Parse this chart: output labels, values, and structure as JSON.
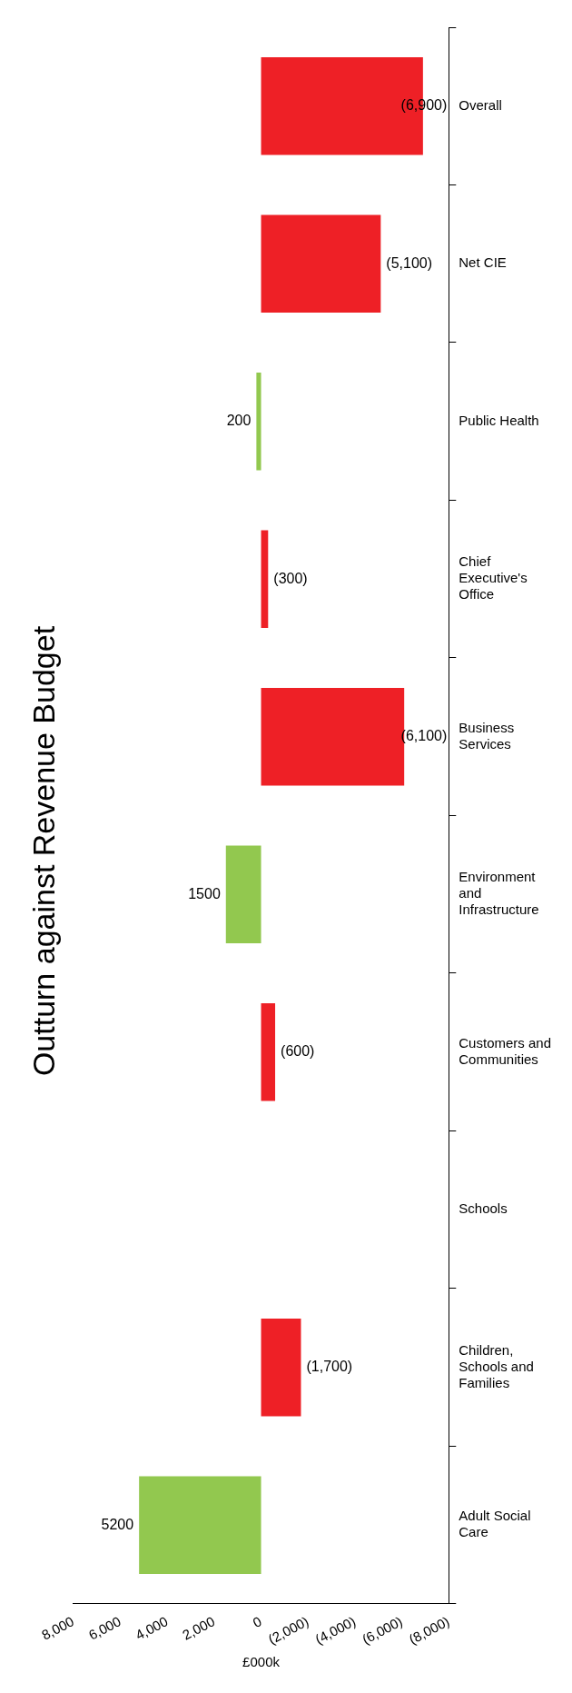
{
  "chart_data": {
    "type": "bar",
    "orientation": "horizontal",
    "title": "Outturn against Revenue Budget",
    "xlabel": "£000k",
    "categories": [
      "Overall",
      "Net CIE",
      "Public Health",
      "Chief Executive's Office",
      "Business Services",
      "Environment and Infrastructure",
      "Customers and Communities",
      "Schools",
      "Children, Schools and Families",
      "Adult Social Care"
    ],
    "values": [
      -6900,
      -5100,
      200,
      -300,
      -6100,
      1500,
      -600,
      null,
      -1700,
      5200
    ],
    "colors": [
      "#ee2026",
      "#ee2026",
      "#92c84f",
      "#ee2026",
      "#ee2026",
      "#92c84f",
      "#ee2026",
      null,
      "#ee2026",
      "#92c84f"
    ],
    "value_labels": [
      "(6,900)",
      "(5,100)",
      "200",
      "(300)",
      "(6,100)",
      "1500",
      "(600)",
      null,
      "(1,700)",
      "5200"
    ],
    "xlim": [
      8000,
      -8000
    ],
    "xticks": [
      {
        "value": 8000,
        "label": "8,000"
      },
      {
        "value": 6000,
        "label": "6,000"
      },
      {
        "value": 4000,
        "label": "4,000"
      },
      {
        "value": 2000,
        "label": "2,000"
      },
      0,
      {
        "value": -2000,
        "label": "(2,000)"
      },
      {
        "value": -4000,
        "label": "(4,000)"
      },
      {
        "value": -6000,
        "label": "(6,000)"
      },
      {
        "value": -8000,
        "label": "(8,000)"
      }
    ],
    "grid": false,
    "legend": false
  }
}
